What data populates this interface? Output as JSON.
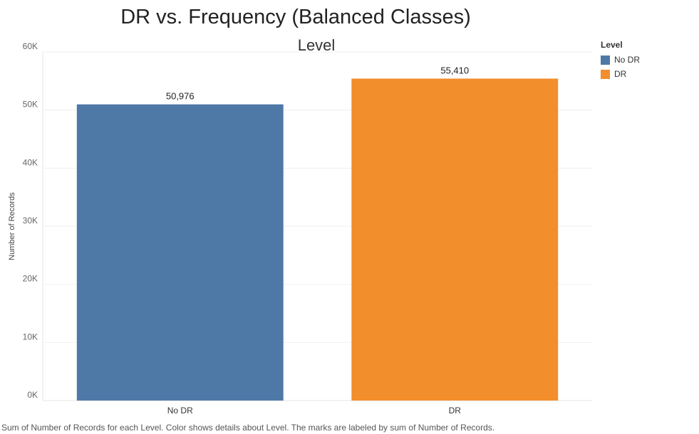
{
  "chart_data": {
    "type": "bar",
    "title": "DR vs. Frequency (Balanced Classes)",
    "column_header": "Level",
    "categories": [
      "No DR",
      "DR"
    ],
    "values": [
      50976,
      55410
    ],
    "value_labels": [
      "50,976",
      "55,410"
    ],
    "colors": [
      "#4e79a7",
      "#f28e2b"
    ],
    "xlabel": "",
    "ylabel": "Number of Records",
    "ylim": [
      0,
      60000
    ],
    "yticks": [
      0,
      10000,
      20000,
      30000,
      40000,
      50000,
      60000
    ],
    "ytick_labels": [
      "0K",
      "10K",
      "20K",
      "30K",
      "40K",
      "50K",
      "60K"
    ],
    "grid": true,
    "legend": {
      "title": "Level",
      "position": "top-right",
      "items": [
        {
          "label": "No DR",
          "color": "#4e79a7"
        },
        {
          "label": "DR",
          "color": "#f28e2b"
        }
      ]
    }
  },
  "caption": "Sum of Number of Records for each Level.  Color shows details about Level.  The marks are labeled by sum of Number of Records."
}
